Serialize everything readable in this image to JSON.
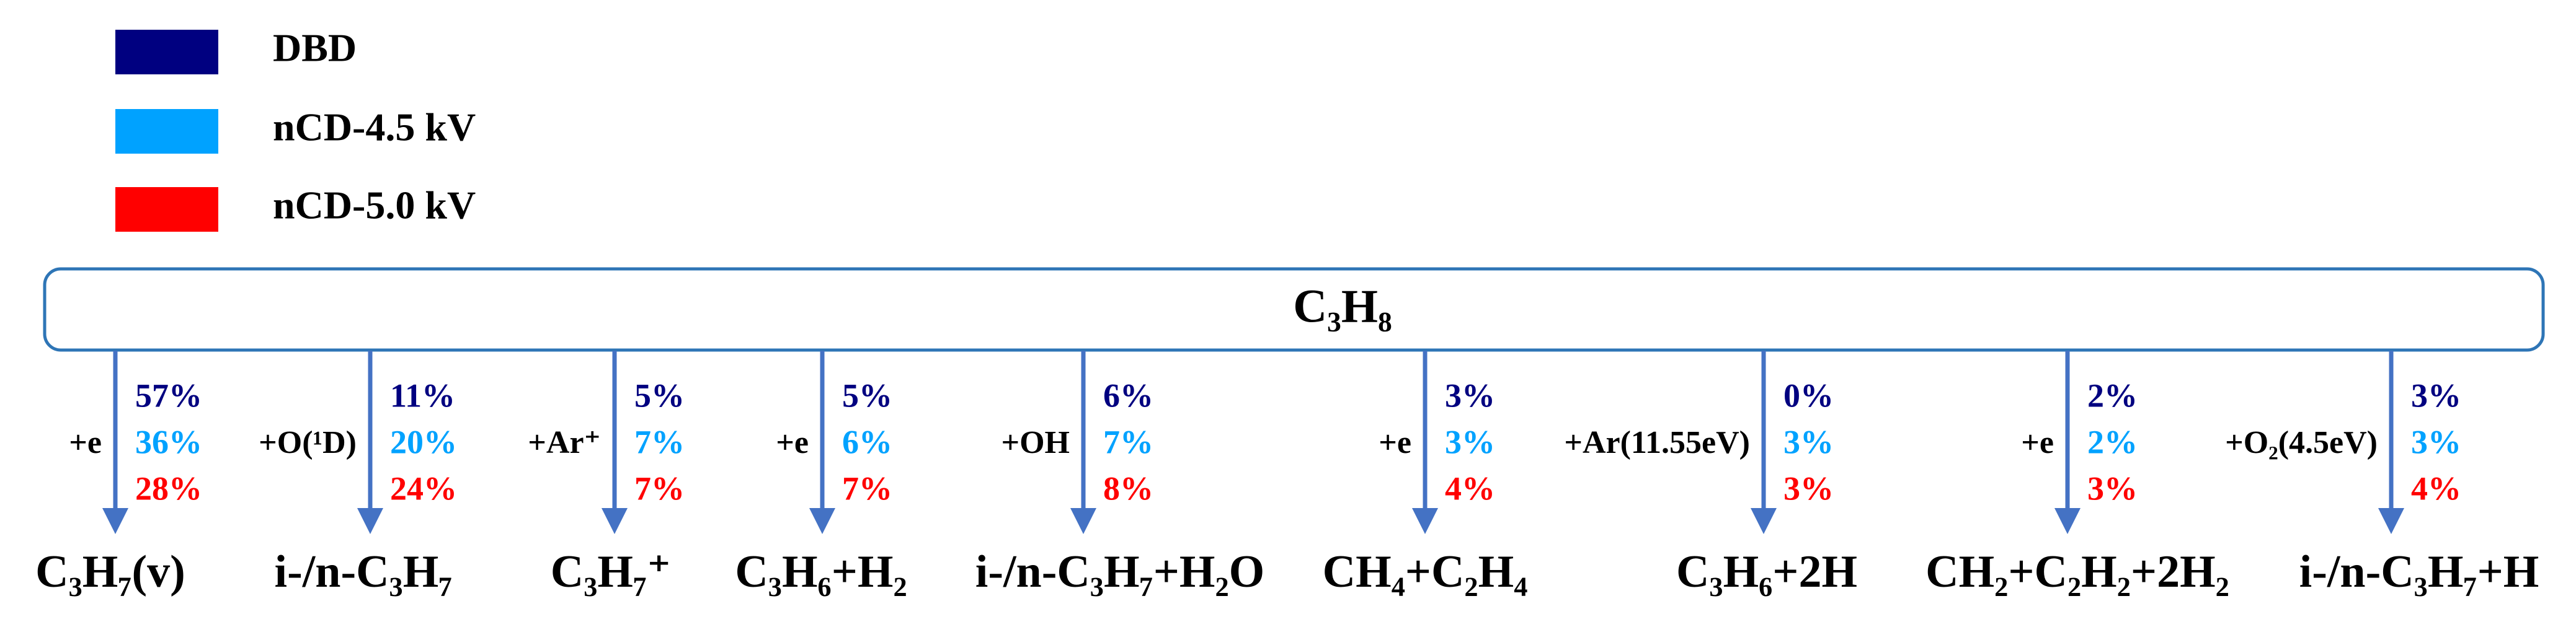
{
  "legend": [
    {
      "label": "DBD",
      "color": "#000080"
    },
    {
      "label": "nCD-4.5 kV",
      "color": "#00a2ff"
    },
    {
      "label": "nCD-5.0 kV",
      "color": "#ff0000"
    }
  ],
  "root": "C₃H₈",
  "branches": [
    {
      "reagent": "+e",
      "values": [
        "57%",
        "36%",
        "28%"
      ],
      "product": "C₃H₇(v)"
    },
    {
      "reagent": "+O(¹D)",
      "values": [
        "11%",
        "20%",
        "24%"
      ],
      "product": "i-/n-C₃H₇"
    },
    {
      "reagent": "+Ar⁺",
      "values": [
        "5%",
        "7%",
        "7%"
      ],
      "product": "C₃H₇⁺"
    },
    {
      "reagent": "+e",
      "values": [
        "5%",
        "6%",
        "7%"
      ],
      "product": "C₃H₆+H₂"
    },
    {
      "reagent": "+OH",
      "values": [
        "6%",
        "7%",
        "8%"
      ],
      "product": "i-/n-C₃H₇+H₂O"
    },
    {
      "reagent": "+e",
      "values": [
        "3%",
        "3%",
        "4%"
      ],
      "product": "CH₄+C₂H₄"
    },
    {
      "reagent": "+Ar(11.55eV)",
      "values": [
        "0%",
        "3%",
        "3%"
      ],
      "product": "C₃H₆+2H"
    },
    {
      "reagent": "+e",
      "values": [
        "2%",
        "2%",
        "3%"
      ],
      "product": "CH₂+C₂H₂+2H₂"
    },
    {
      "reagent": "+O₂(4.5eV)",
      "values": [
        "3%",
        "3%",
        "4%"
      ],
      "product": "i-/n-C₃H₇+H"
    }
  ]
}
